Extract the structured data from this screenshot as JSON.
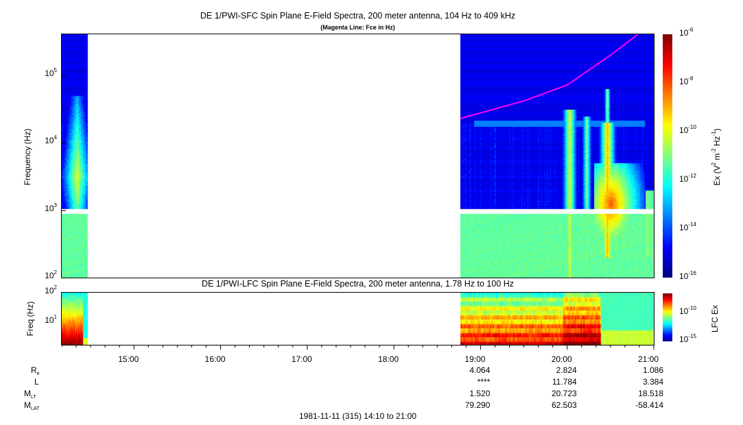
{
  "chart_data": [
    {
      "type": "heatmap",
      "title": "DE 1/PWI-SFC  Spin Plane E-Field Spectra, 200 meter antenna, 104 Hz to 409 kHz",
      "subtitle": "(Magenta Line: Fce in Hz)",
      "ylabel": "Frequency (Hz)",
      "yscale": "log",
      "ylim": [
        100,
        409000
      ],
      "yticks": [
        {
          "base": "10",
          "exp": "2"
        },
        {
          "base": "10",
          "exp": "3"
        },
        {
          "base": "10",
          "exp": "4"
        },
        {
          "base": "10",
          "exp": "5"
        }
      ],
      "xlim": [
        "14:10",
        "21:00"
      ],
      "data_intervals": [
        [
          "14:10",
          "14:28"
        ],
        [
          "18:46",
          "21:00"
        ]
      ],
      "colorbar": {
        "label_parts": [
          "Ex (V",
          "2",
          " m",
          "-2",
          " Hz",
          "-1",
          ")"
        ],
        "range": [
          1e-16,
          1e-06
        ],
        "scale": "log",
        "ticks": [
          {
            "base": "10",
            "exp": "-6"
          },
          {
            "base": "10",
            "exp": "-8"
          },
          {
            "base": "10",
            "exp": "-10"
          },
          {
            "base": "10",
            "exp": "-12"
          },
          {
            "base": "10",
            "exp": "-14"
          },
          {
            "base": "10",
            "exp": "-16"
          }
        ]
      },
      "fce_line": {
        "color": "#ff00ff",
        "time": [
          "18:46",
          "19:30",
          "20:00",
          "20:30",
          "20:49"
        ],
        "freq_hz": [
          23000,
          42000,
          72000,
          200000,
          409000
        ]
      }
    },
    {
      "type": "heatmap",
      "title": "DE 1/PWI-LFC  Spin Plane E-Field Spectra, 200 meter antenna, 1.78 Hz to 100 Hz",
      "ylabel": "Freq (Hz)",
      "yscale": "log",
      "ylim": [
        1.78,
        100
      ],
      "yticks": [
        {
          "base": "10",
          "exp": "2"
        },
        {
          "base": "10",
          "exp": "1"
        }
      ],
      "xlim": [
        "14:10",
        "21:00"
      ],
      "xticks": [
        "15:00",
        "16:00",
        "17:00",
        "18:00",
        "19:00",
        "20:00",
        "21:00"
      ],
      "data_intervals": [
        [
          "14:10",
          "14:28"
        ],
        [
          "18:46",
          "21:00"
        ]
      ],
      "colorbar": {
        "label": "LFC Ex",
        "scale": "log",
        "ticks": [
          {
            "base": "10",
            "exp": "-10"
          },
          {
            "base": "10",
            "exp": "-15"
          }
        ]
      }
    }
  ],
  "ephemeris": {
    "rows": [
      {
        "main": "R",
        "sub": "e",
        "values": [
          "4.064",
          "2.824",
          "1.086"
        ]
      },
      {
        "main": "L",
        "sub": "",
        "values": [
          "****",
          "11.784",
          "3.384"
        ]
      },
      {
        "main": "M",
        "sub": "LT",
        "values": [
          "1.520",
          "20.723",
          "18.518"
        ]
      },
      {
        "main": "M",
        "sub": "LAT",
        "values": [
          "79.290",
          "62.503",
          "-58.414"
        ]
      }
    ],
    "columns": [
      "19:00",
      "20:00",
      "21:00"
    ]
  },
  "footer": "1981-11-11 (315) 14:10 to 21:00"
}
